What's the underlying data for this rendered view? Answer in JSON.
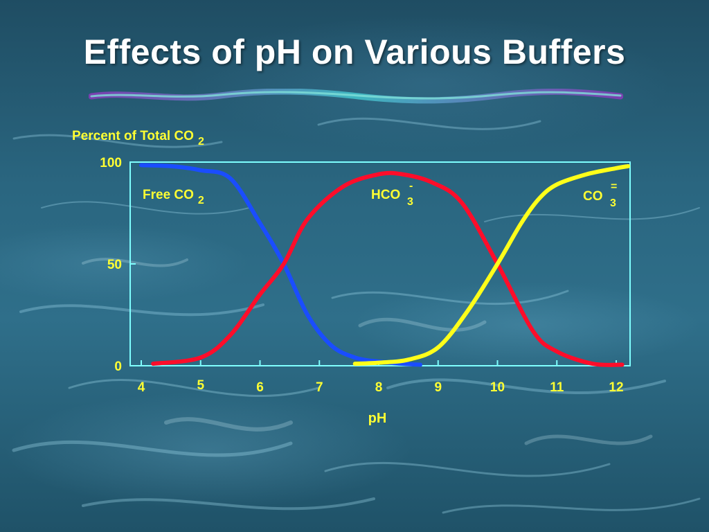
{
  "slide": {
    "title": "Effects of pH on Various Buffers"
  },
  "colors": {
    "axis": "#7fffff",
    "label_text": "#ffff33",
    "free_co2": "#1a4dff",
    "hco3": "#ff0d2a",
    "co3": "#ffff1a"
  },
  "chart_data": {
    "type": "line",
    "ylabel": "Percent of Total CO",
    "ylabel_sub": "2",
    "xlabel": "pH",
    "xlim": [
      4,
      12.2
    ],
    "ylim": [
      0,
      100
    ],
    "xticks": [
      4,
      5,
      6,
      7,
      8,
      9,
      10,
      11,
      12
    ],
    "yticks": [
      0,
      50,
      100
    ],
    "series": [
      {
        "name": "Free CO",
        "name_sub": "2",
        "name_sup": "",
        "color": "#1a4dff",
        "points": [
          [
            4.0,
            98.5
          ],
          [
            4.5,
            98
          ],
          [
            5.0,
            96
          ],
          [
            5.5,
            92
          ],
          [
            6.0,
            70
          ],
          [
            6.4,
            50
          ],
          [
            6.8,
            25
          ],
          [
            7.2,
            10
          ],
          [
            7.6,
            4
          ],
          [
            8.0,
            2
          ],
          [
            8.4,
            1
          ],
          [
            8.7,
            0.5
          ]
        ]
      },
      {
        "name": "HCO",
        "name_sub": "3",
        "name_sup": "-",
        "color": "#ff0d2a",
        "points": [
          [
            4.2,
            1
          ],
          [
            5.0,
            4
          ],
          [
            5.5,
            15
          ],
          [
            6.0,
            35
          ],
          [
            6.4,
            50
          ],
          [
            6.8,
            72
          ],
          [
            7.4,
            88
          ],
          [
            8.0,
            94
          ],
          [
            8.4,
            94
          ],
          [
            8.9,
            90
          ],
          [
            9.4,
            80
          ],
          [
            10.0,
            50
          ],
          [
            10.6,
            17
          ],
          [
            11.0,
            7
          ],
          [
            11.6,
            1
          ],
          [
            12.1,
            0.5
          ]
        ]
      },
      {
        "name": "CO",
        "name_sub": "3",
        "name_sup": "=",
        "color": "#ffff1a",
        "points": [
          [
            7.6,
            1
          ],
          [
            8.0,
            1.5
          ],
          [
            8.5,
            3
          ],
          [
            9.0,
            9
          ],
          [
            9.5,
            27
          ],
          [
            10.0,
            50
          ],
          [
            10.4,
            70
          ],
          [
            10.7,
            82
          ],
          [
            11.0,
            89
          ],
          [
            11.5,
            94
          ],
          [
            12.0,
            97
          ],
          [
            12.2,
            98
          ]
        ]
      }
    ]
  }
}
